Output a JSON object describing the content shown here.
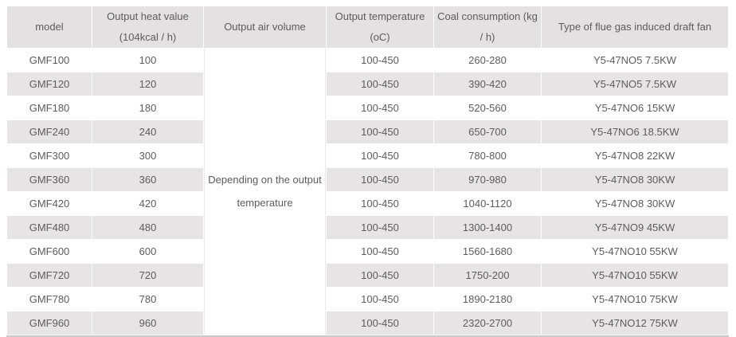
{
  "table": {
    "columns": [
      {
        "id": "model",
        "label": "model"
      },
      {
        "id": "heat",
        "label": "Output heat value\n(104kcal / h)"
      },
      {
        "id": "air",
        "label": "Output air volume"
      },
      {
        "id": "temp",
        "label": "Output temperature\n(oC)"
      },
      {
        "id": "coal",
        "label": "Coal consumption (kg\n/ h)"
      },
      {
        "id": "fan",
        "label": "Type of flue gas induced draft fan"
      }
    ],
    "air_volume_note": "Depending on the output\ntemperature",
    "rows": [
      {
        "model": "GMF100",
        "heat": "100",
        "temp": "100-450",
        "coal": "260-280",
        "fan": "Y5-47NO5 7.5KW"
      },
      {
        "model": "GMF120",
        "heat": "120",
        "temp": "100-450",
        "coal": "390-420",
        "fan": "Y5-47NO5 7.5KW"
      },
      {
        "model": "GMF180",
        "heat": "180",
        "temp": "100-450",
        "coal": "520-560",
        "fan": "Y5-47NO6 15KW"
      },
      {
        "model": "GMF240",
        "heat": "240",
        "temp": "100-450",
        "coal": "650-700",
        "fan": "Y5-47NO6 18.5KW"
      },
      {
        "model": "GMF300",
        "heat": "300",
        "temp": "100-450",
        "coal": "780-800",
        "fan": "Y5-47NO8 22KW"
      },
      {
        "model": "GMF360",
        "heat": "360",
        "temp": "100-450",
        "coal": "970-980",
        "fan": "Y5-47NO8 30KW"
      },
      {
        "model": "GMF420",
        "heat": "420",
        "temp": "100-450",
        "coal": "1040-1120",
        "fan": "Y5-47NO8 30KW"
      },
      {
        "model": "GMF480",
        "heat": "480",
        "temp": "100-450",
        "coal": "1300-1400",
        "fan": "Y5-47NO9 45KW"
      },
      {
        "model": "GMF600",
        "heat": "600",
        "temp": "100-450",
        "coal": "1560-1680",
        "fan": "Y5-47NO10 55KW"
      },
      {
        "model": "GMF720",
        "heat": "720",
        "temp": "100-450",
        "coal": "1750-200",
        "fan": "Y5-47NO10 55KW"
      },
      {
        "model": "GMF780",
        "heat": "780",
        "temp": "100-450",
        "coal": "1890-2180",
        "fan": "Y5-47NO10 75KW"
      },
      {
        "model": "GMF960",
        "heat": "960",
        "temp": "100-450",
        "coal": "2320-2700",
        "fan": "Y5-47NO12 75KW"
      }
    ]
  },
  "colors": {
    "header_bg": "#e3e1e1",
    "row_bg": "#ffffff",
    "row_alt_bg": "#e6e4e4",
    "text": "#5c5c5c",
    "grid_gap": "#ffffff",
    "bottom_border": "#cac8c8"
  }
}
